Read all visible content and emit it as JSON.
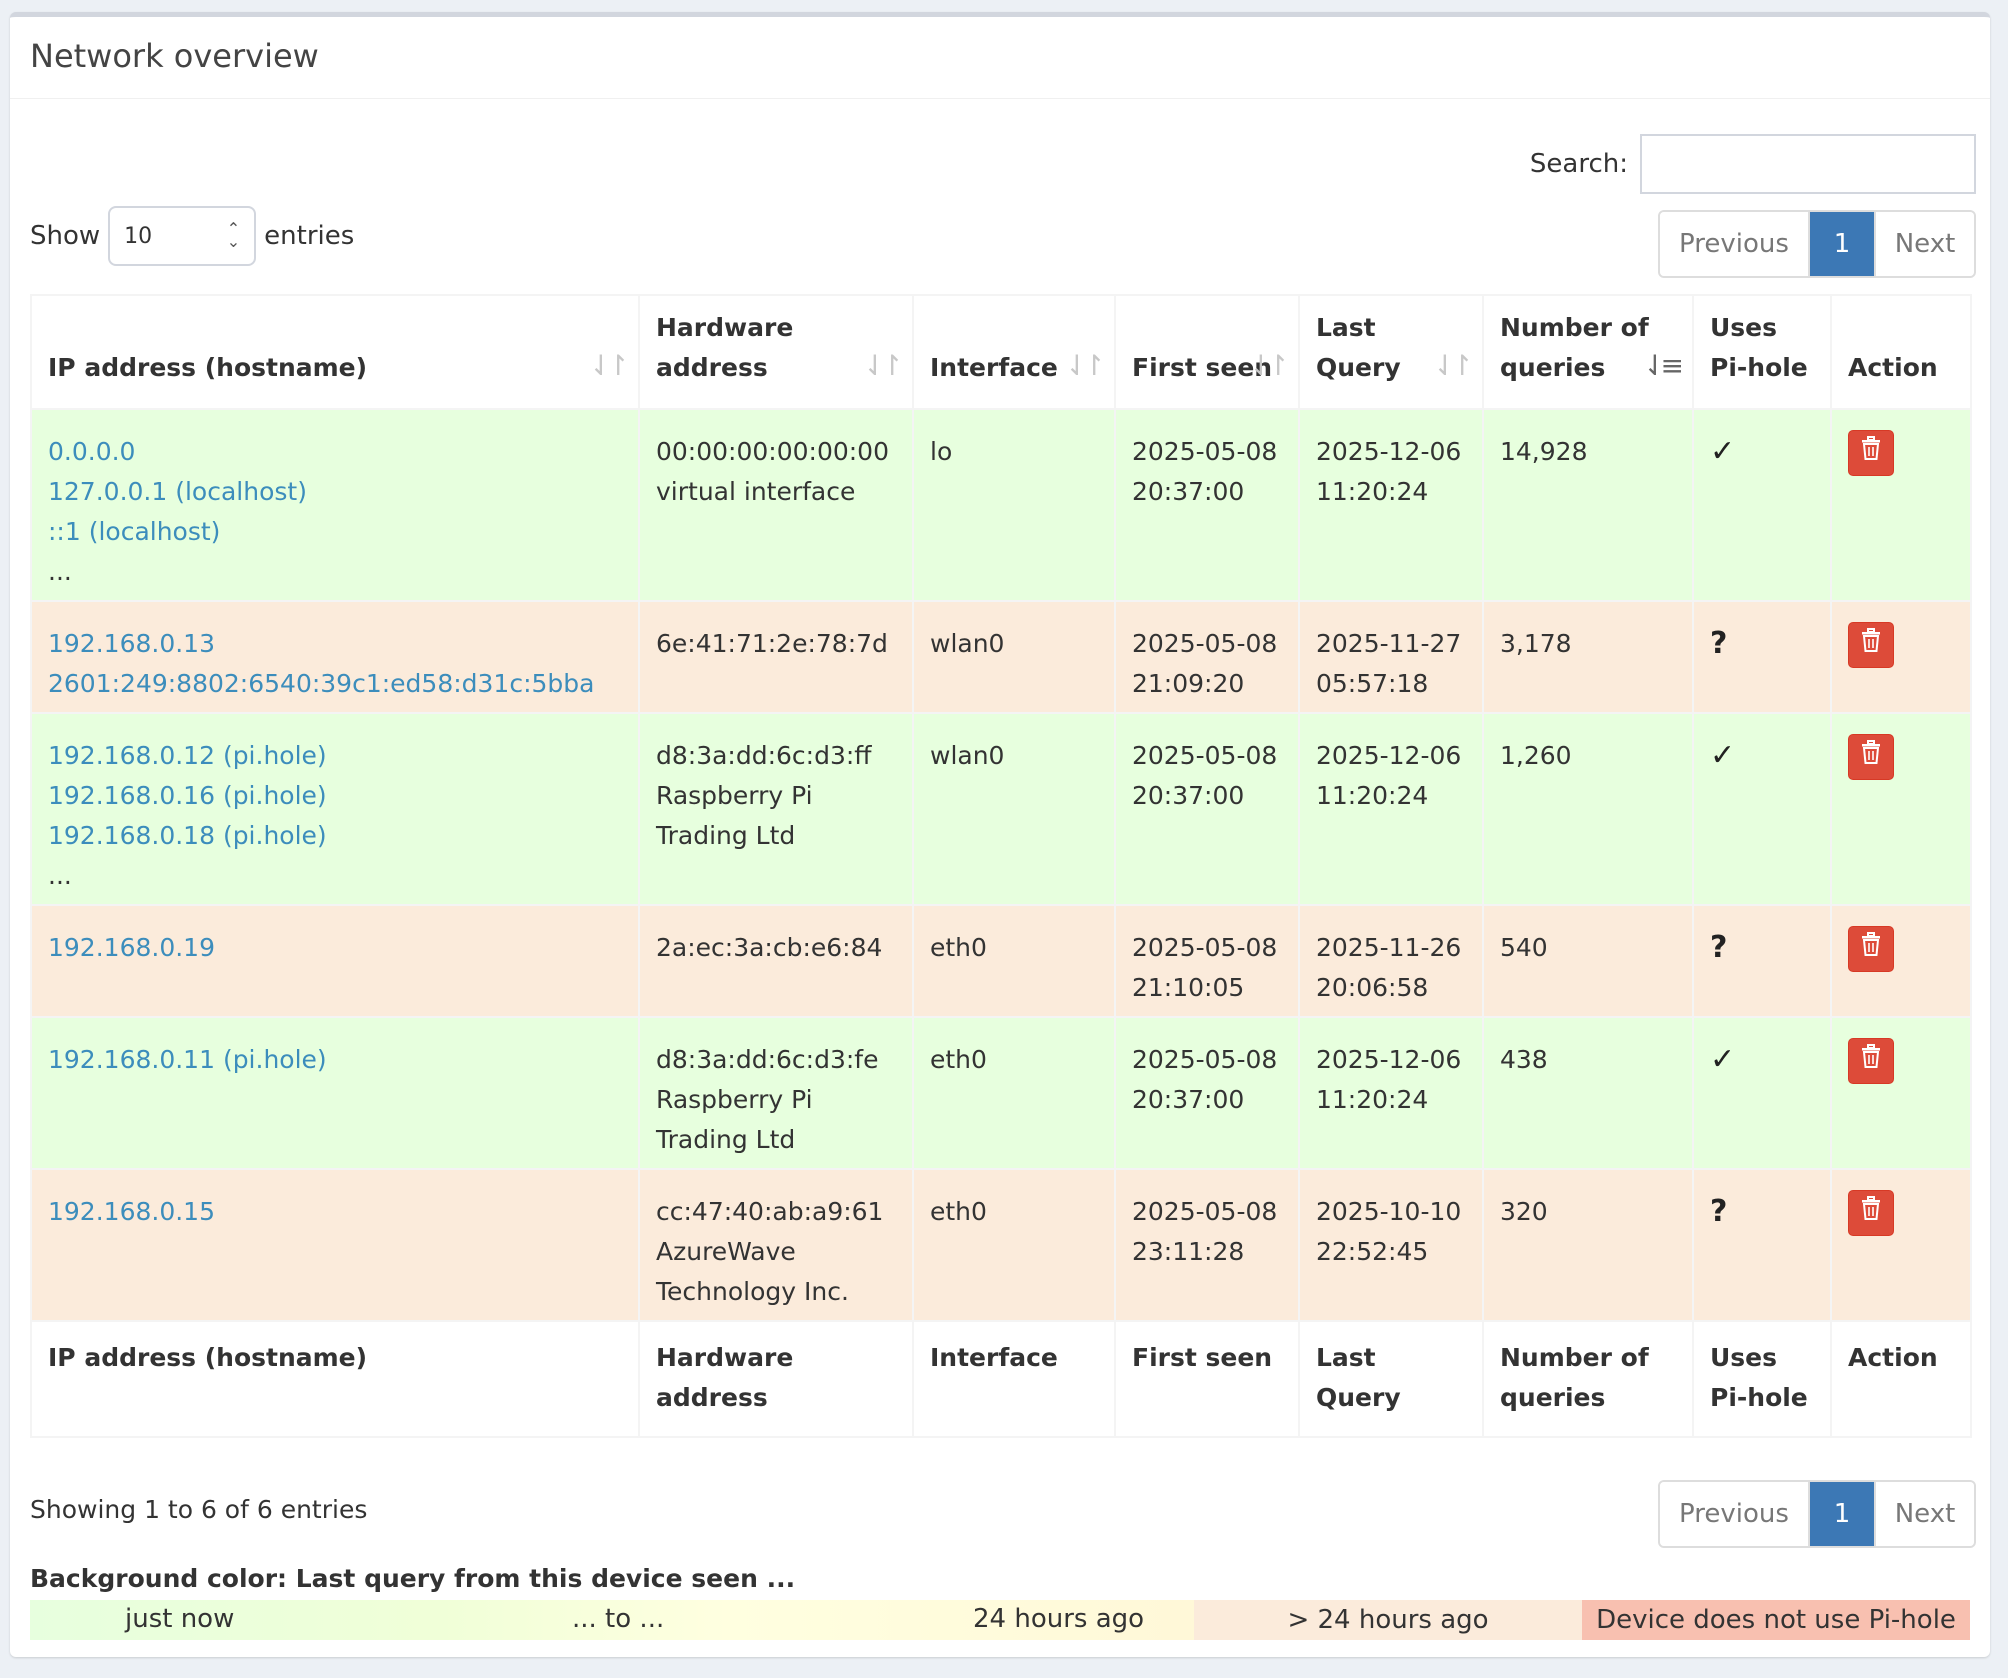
{
  "box": {
    "title": "Network overview"
  },
  "controls": {
    "search_label": "Search:",
    "search_value": "",
    "show_label": "Show",
    "entries_label": "entries",
    "page_length": "10"
  },
  "pagination": {
    "previous": "Previous",
    "current": "1",
    "next": "Next"
  },
  "table": {
    "columns": [
      "IP address (hostname)",
      "Hardware address",
      "Interface",
      "First seen",
      "Last Query",
      "Number of queries",
      "Uses Pi-hole",
      "Action"
    ],
    "rows": [
      {
        "color": "green",
        "ips": [
          "0.0.0.0",
          "127.0.0.1 (localhost)",
          "::1 (localhost)"
        ],
        "more": "...",
        "hw": [
          "00:00:00:00:00:00",
          "virtual interface"
        ],
        "iface": "lo",
        "first_seen": [
          "2025-05-08",
          "20:37:00"
        ],
        "last_query": [
          "2025-12-06",
          "11:20:24"
        ],
        "queries": "14,928",
        "uses_pihole": "✓"
      },
      {
        "color": "orange",
        "ips": [
          "192.168.0.13",
          "2601:249:8802:6540:39c1:ed58:d31c:5bba"
        ],
        "more": "",
        "hw": [
          "6e:41:71:2e:78:7d"
        ],
        "iface": "wlan0",
        "first_seen": [
          "2025-05-08",
          "21:09:20"
        ],
        "last_query": [
          "2025-11-27",
          "05:57:18"
        ],
        "queries": "3,178",
        "uses_pihole": "?"
      },
      {
        "color": "green",
        "ips": [
          "192.168.0.12 (pi.hole)",
          "192.168.0.16 (pi.hole)",
          "192.168.0.18 (pi.hole)"
        ],
        "more": "...",
        "hw": [
          "d8:3a:dd:6c:d3:ff",
          "Raspberry Pi",
          "Trading Ltd"
        ],
        "iface": "wlan0",
        "first_seen": [
          "2025-05-08",
          "20:37:00"
        ],
        "last_query": [
          "2025-12-06",
          "11:20:24"
        ],
        "queries": "1,260",
        "uses_pihole": "✓"
      },
      {
        "color": "orange",
        "ips": [
          "192.168.0.19"
        ],
        "more": "",
        "hw": [
          "2a:ec:3a:cb:e6:84"
        ],
        "iface": "eth0",
        "first_seen": [
          "2025-05-08",
          "21:10:05"
        ],
        "last_query": [
          "2025-11-26",
          "20:06:58"
        ],
        "queries": "540",
        "uses_pihole": "?"
      },
      {
        "color": "green",
        "ips": [
          "192.168.0.11 (pi.hole)"
        ],
        "more": "",
        "hw": [
          "d8:3a:dd:6c:d3:fe",
          "Raspberry Pi",
          "Trading Ltd"
        ],
        "iface": "eth0",
        "first_seen": [
          "2025-05-08",
          "20:37:00"
        ],
        "last_query": [
          "2025-12-06",
          "11:20:24"
        ],
        "queries": "438",
        "uses_pihole": "✓"
      },
      {
        "color": "orange",
        "ips": [
          "192.168.0.15"
        ],
        "more": "",
        "hw": [
          "cc:47:40:ab:a9:61",
          "AzureWave",
          "Technology Inc."
        ],
        "iface": "eth0",
        "first_seen": [
          "2025-05-08",
          "23:11:28"
        ],
        "last_query": [
          "2025-10-10",
          "22:52:45"
        ],
        "queries": "320",
        "uses_pihole": "?"
      }
    ]
  },
  "info": "Showing 1 to 6 of 6 entries",
  "legend": {
    "title": "Background color: Last query from this device seen ...",
    "just_now": "just now",
    "to": "... to ...",
    "day": "24 hours ago",
    "older": "> 24 hours ago",
    "no_pihole": "Device does not use Pi-hole"
  },
  "colors": {
    "recent_row": "#e7ffde",
    "old_row": "#fbebdb",
    "no_pihole": "#f8c0b0",
    "link": "#3c8dbc",
    "active_page": "#3c78b5",
    "delete_button": "#dd4b39"
  }
}
